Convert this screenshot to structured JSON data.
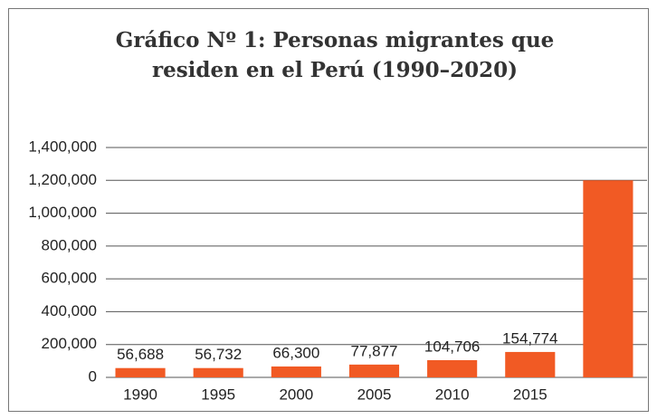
{
  "chart_data": {
    "type": "bar",
    "title": [
      "Gráfico Nº 1: Personas migrantes que",
      "residen en el Perú (1990–2020)"
    ],
    "categories": [
      "1990",
      "1995",
      "2000",
      "2005",
      "2010",
      "2015",
      null
    ],
    "values": [
      56688,
      56732,
      66300,
      77877,
      104706,
      154774,
      1200000
    ],
    "value_labels": [
      "56,688",
      "56,732",
      "66,300",
      "77,877",
      "104,706",
      "154,774",
      null
    ],
    "color": "#f15a24",
    "ylim": [
      0,
      1400000
    ],
    "yticks": [
      0,
      {
        "value": 200000,
        "label": "200,000"
      },
      {
        "value": 400000,
        "label": "400,000"
      },
      {
        "value": 600000,
        "label": "600,000"
      },
      {
        "value": 800000,
        "label": "800,000"
      },
      {
        "value": 1000000,
        "label": "1,000,000"
      },
      {
        "value": 1200000,
        "label": "1,200,000"
      },
      {
        "value": 1400000,
        "label": "1,400,000"
      }
    ],
    "grid": true
  }
}
